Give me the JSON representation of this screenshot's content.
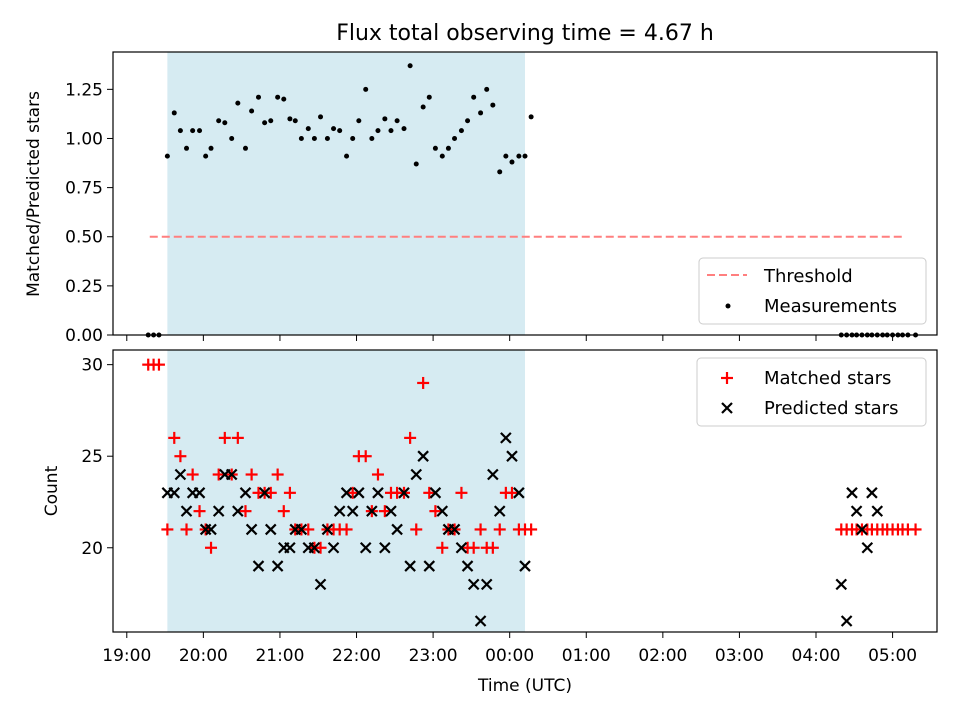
{
  "colors": {
    "shade": "#add8e6",
    "threshold": "#ff7f7f",
    "measurement": "#000000",
    "matched": "#ff0000",
    "predicted": "#000000"
  },
  "chart_data": {
    "title": "Flux total observing time = 4.67 h",
    "xlabel": "Time (UTC)",
    "x_ticks": [
      "19:00",
      "20:00",
      "21:00",
      "22:00",
      "23:00",
      "00:00",
      "01:00",
      "02:00",
      "03:00",
      "04:00",
      "05:00"
    ],
    "x_domain_hours": [
      18.82,
      29.58
    ],
    "shaded_interval_hours": [
      19.53,
      24.2
    ],
    "panels": [
      {
        "type": "scatter",
        "ylabel": "Matched/Predicted stars",
        "ylim": [
          0,
          1.44
        ],
        "y_ticks": [
          "0.00",
          "0.25",
          "0.50",
          "0.75",
          "1.00",
          "1.25"
        ],
        "legend": {
          "position": "bottom-right",
          "entries": [
            "Threshold",
            "Measurements"
          ]
        },
        "threshold": {
          "name": "Threshold",
          "y": 0.5,
          "x_range": [
            19.3,
            29.13
          ]
        },
        "series": [
          {
            "name": "Measurements",
            "marker": "dot",
            "x": [
              19.28,
              19.35,
              19.42,
              19.53,
              19.62,
              19.7,
              19.78,
              19.86,
              19.95,
              20.03,
              20.1,
              20.2,
              20.28,
              20.37,
              20.45,
              20.55,
              20.63,
              20.72,
              20.8,
              20.88,
              20.97,
              21.05,
              21.13,
              21.2,
              21.28,
              21.37,
              21.45,
              21.53,
              21.62,
              21.7,
              21.78,
              21.87,
              21.95,
              22.03,
              22.12,
              22.2,
              22.28,
              22.37,
              22.45,
              22.53,
              22.62,
              22.7,
              22.78,
              22.87,
              22.95,
              23.03,
              23.12,
              23.2,
              23.28,
              23.37,
              23.45,
              23.53,
              23.62,
              23.7,
              23.78,
              23.87,
              23.95,
              24.03,
              24.12,
              24.2,
              24.28,
              28.33,
              28.4,
              28.47,
              28.53,
              28.6,
              28.67,
              28.73,
              28.8,
              28.87,
              28.93,
              29.0,
              29.07,
              29.13,
              29.2,
              29.3
            ],
            "y": [
              0,
              0,
              0,
              0.91,
              1.13,
              1.04,
              0.95,
              1.04,
              1.04,
              0.91,
              0.95,
              1.09,
              1.08,
              1.0,
              1.18,
              0.95,
              1.14,
              1.21,
              1.08,
              1.09,
              1.21,
              1.2,
              1.1,
              1.09,
              1.0,
              1.05,
              1.0,
              1.11,
              1.0,
              1.05,
              1.04,
              0.91,
              1.0,
              1.09,
              1.25,
              1.0,
              1.04,
              1.1,
              1.04,
              1.09,
              1.05,
              1.37,
              0.87,
              1.16,
              1.21,
              0.95,
              0.91,
              0.95,
              1.0,
              1.04,
              1.09,
              1.21,
              1.13,
              1.25,
              1.17,
              0.83,
              0.91,
              0.88,
              0.91,
              0.91,
              1.11,
              0,
              0,
              0,
              0,
              0,
              0,
              0,
              0,
              0,
              0,
              0,
              0,
              0,
              0,
              0
            ],
            "note_unused": null
          }
        ]
      },
      {
        "type": "scatter",
        "ylabel": "Count",
        "ylim": [
          15.4,
          30.8
        ],
        "y_ticks": [
          "20",
          "25",
          "30"
        ],
        "legend": {
          "position": "top-right",
          "entries": [
            "Matched stars",
            "Predicted stars"
          ]
        },
        "series": [
          {
            "name": "Matched stars",
            "marker": "plus",
            "x": [
              19.28,
              19.35,
              19.42,
              19.53,
              19.62,
              19.7,
              19.78,
              19.86,
              19.95,
              20.03,
              20.1,
              20.2,
              20.28,
              20.37,
              20.45,
              20.55,
              20.63,
              20.72,
              20.8,
              20.88,
              20.97,
              21.05,
              21.13,
              21.2,
              21.28,
              21.37,
              21.45,
              21.53,
              21.62,
              21.7,
              21.78,
              21.87,
              21.95,
              22.03,
              22.12,
              22.2,
              22.28,
              22.37,
              22.45,
              22.53,
              22.62,
              22.7,
              22.78,
              22.87,
              22.95,
              23.03,
              23.12,
              23.2,
              23.28,
              23.37,
              23.45,
              23.53,
              23.62,
              23.7,
              23.78,
              23.87,
              23.95,
              24.03,
              24.12,
              24.2,
              24.28,
              28.33,
              28.4,
              28.47,
              28.53,
              28.6,
              28.67,
              28.73,
              28.8,
              28.87,
              28.93,
              29.0,
              29.07,
              29.13,
              29.2,
              29.3
            ],
            "y": [
              30,
              30,
              30,
              21,
              26,
              25,
              21,
              24,
              22,
              21,
              20,
              24,
              26,
              24,
              26,
              22,
              24,
              23,
              23,
              23,
              24,
              22,
              23,
              21,
              21,
              21,
              20,
              20,
              21,
              21,
              21,
              21,
              23,
              25,
              25,
              22,
              24,
              22,
              23,
              23,
              23,
              26,
              21,
              29,
              23,
              22,
              20,
              21,
              21,
              23,
              20,
              20,
              21,
              20,
              20,
              21,
              23,
              23,
              21,
              21,
              21,
              21,
              21,
              21,
              21,
              21,
              21,
              21,
              21,
              21,
              21,
              21,
              21,
              21,
              21,
              21
            ],
            "note_unused": null
          },
          {
            "name": "Predicted stars",
            "marker": "x",
            "x": [
              19.53,
              19.62,
              19.7,
              19.78,
              19.86,
              19.95,
              20.03,
              20.1,
              20.2,
              20.28,
              20.37,
              20.45,
              20.55,
              20.63,
              20.72,
              20.8,
              20.88,
              20.97,
              21.05,
              21.13,
              21.2,
              21.28,
              21.37,
              21.45,
              21.53,
              21.62,
              21.7,
              21.78,
              21.87,
              21.95,
              22.03,
              22.12,
              22.2,
              22.28,
              22.37,
              22.45,
              22.53,
              22.62,
              22.7,
              22.78,
              22.87,
              22.95,
              23.03,
              23.12,
              23.2,
              23.28,
              23.37,
              23.45,
              23.53,
              23.62,
              23.7,
              23.78,
              23.87,
              23.95,
              24.03,
              24.12,
              24.2,
              28.33,
              28.4,
              28.47,
              28.53,
              28.6,
              28.67,
              28.73,
              28.8
            ],
            "y": [
              23,
              23,
              24,
              22,
              23,
              23,
              21,
              21,
              22,
              24,
              24,
              22,
              23,
              21,
              19,
              23,
              21,
              19,
              20,
              20,
              21,
              21,
              20,
              20,
              18,
              21,
              20,
              22,
              23,
              22,
              23,
              20,
              22,
              23,
              20,
              22,
              21,
              23,
              19,
              24,
              25,
              19,
              23,
              22,
              21,
              21,
              20,
              19,
              18,
              16,
              18,
              24,
              22,
              26,
              25,
              23,
              19,
              18,
              16,
              23,
              22,
              21,
              20,
              23,
              22
            ],
            "note_unused": null
          }
        ]
      }
    ]
  }
}
